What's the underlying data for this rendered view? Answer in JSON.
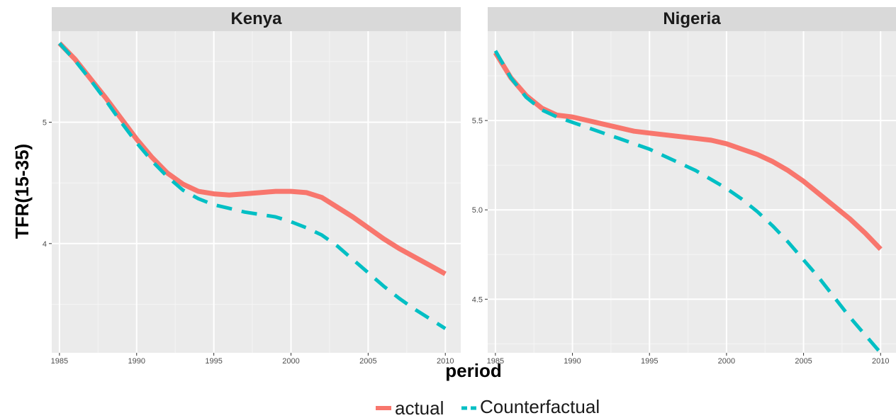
{
  "chart_data": {
    "type": "line",
    "xlabel": "period",
    "ylabel": "TFR(15-35)",
    "legend_position": "bottom",
    "grid": true,
    "colors": {
      "actual": "#F8766D",
      "Counterfactual": "#00BFC4",
      "panel_bg": "#EBEBEB",
      "strip_bg": "#D9D9D9",
      "grid": "#FFFFFF"
    },
    "legend": [
      {
        "name": "actual",
        "style": "solid",
        "color": "#F8766D"
      },
      {
        "name": "Counterfactual",
        "style": "dashed",
        "color": "#00BFC4"
      }
    ],
    "panels": [
      {
        "title": "Kenya",
        "xlim": [
          1984.5,
          2011
        ],
        "ylim": [
          3.1,
          5.75
        ],
        "x_ticks": [
          "1985",
          "1990",
          "1995",
          "2000",
          "2005",
          "2010"
        ],
        "y_ticks": [
          "4",
          "5"
        ],
        "series": [
          {
            "name": "actual",
            "x": [
              1985,
              1986,
              1987,
              1988,
              1989,
              1990,
              1991,
              1992,
              1993,
              1994,
              1995,
              1996,
              1997,
              1998,
              1999,
              2000,
              2001,
              2002,
              2003,
              2004,
              2005,
              2006,
              2007,
              2008,
              2009,
              2010
            ],
            "y": [
              5.65,
              5.52,
              5.36,
              5.2,
              5.03,
              4.86,
              4.71,
              4.58,
              4.49,
              4.43,
              4.41,
              4.4,
              4.41,
              4.42,
              4.43,
              4.43,
              4.42,
              4.38,
              4.3,
              4.22,
              4.13,
              4.04,
              3.96,
              3.89,
              3.82,
              3.75
            ]
          },
          {
            "name": "Counterfactual",
            "x": [
              1985,
              1986,
              1987,
              1988,
              1989,
              1990,
              1991,
              1992,
              1993,
              1994,
              1995,
              1996,
              1997,
              1998,
              1999,
              2000,
              2001,
              2002,
              2003,
              2004,
              2005,
              2006,
              2007,
              2008,
              2009,
              2010
            ],
            "y": [
              5.65,
              5.51,
              5.35,
              5.18,
              5.0,
              4.83,
              4.68,
              4.55,
              4.44,
              4.37,
              4.32,
              4.29,
              4.26,
              4.24,
              4.22,
              4.18,
              4.13,
              4.07,
              3.98,
              3.87,
              3.76,
              3.65,
              3.55,
              3.46,
              3.38,
              3.3
            ]
          }
        ]
      },
      {
        "title": "Nigeria",
        "xlim": [
          1984.5,
          2011
        ],
        "ylim": [
          4.2,
          6.0
        ],
        "x_ticks": [
          "1985",
          "1990",
          "1995",
          "2000",
          "2005",
          "2010"
        ],
        "y_ticks": [
          "4.5",
          "5.0",
          "5.5"
        ],
        "series": [
          {
            "name": "actual",
            "x": [
              1985,
              1986,
              1987,
              1988,
              1989,
              1990,
              1991,
              1992,
              1993,
              1994,
              1995,
              1996,
              1997,
              1998,
              1999,
              2000,
              2001,
              2002,
              2003,
              2004,
              2005,
              2006,
              2007,
              2008,
              2009,
              2010
            ],
            "y": [
              5.88,
              5.74,
              5.64,
              5.57,
              5.53,
              5.52,
              5.5,
              5.48,
              5.46,
              5.44,
              5.43,
              5.42,
              5.41,
              5.4,
              5.39,
              5.37,
              5.34,
              5.31,
              5.27,
              5.22,
              5.16,
              5.09,
              5.02,
              4.95,
              4.87,
              4.78
            ]
          },
          {
            "name": "Counterfactual",
            "x": [
              1985,
              1986,
              1987,
              1988,
              1989,
              1990,
              1991,
              1992,
              1993,
              1994,
              1995,
              1996,
              1997,
              1998,
              1999,
              2000,
              2001,
              2002,
              2003,
              2004,
              2005,
              2006,
              2007,
              2008,
              2009,
              2010
            ],
            "y": [
              5.89,
              5.74,
              5.63,
              5.56,
              5.52,
              5.49,
              5.46,
              5.43,
              5.4,
              5.37,
              5.34,
              5.3,
              5.26,
              5.22,
              5.17,
              5.12,
              5.06,
              4.99,
              4.91,
              4.82,
              4.72,
              4.62,
              4.51,
              4.4,
              4.3,
              4.2
            ]
          }
        ]
      }
    ]
  }
}
